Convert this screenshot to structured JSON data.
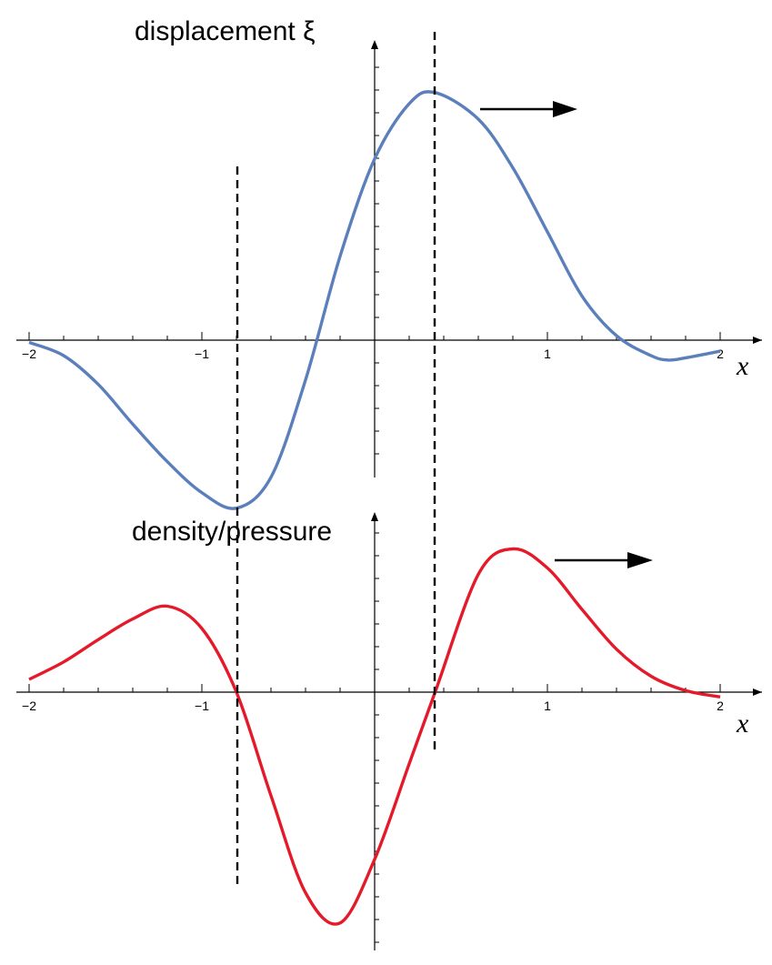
{
  "chart_data": [
    {
      "type": "line",
      "ylabel": "displacement  ξ",
      "xlabel": "x",
      "xlim": [
        -2,
        2
      ],
      "xticks": [
        -2,
        -1,
        1,
        2
      ],
      "series_color": "#5b7fbb",
      "x": [
        -2.0,
        -1.8,
        -1.6,
        -1.4,
        -1.2,
        -1.0,
        -0.8,
        -0.6,
        -0.4,
        -0.2,
        0.0,
        0.2,
        0.35,
        0.6,
        0.8,
        1.0,
        1.2,
        1.4,
        1.6,
        1.7,
        1.8,
        2.0
      ],
      "values": [
        -0.01,
        -0.07,
        -0.2,
        -0.38,
        -0.55,
        -0.69,
        -0.76,
        -0.62,
        -0.18,
        0.38,
        0.82,
        1.07,
        1.12,
        1.0,
        0.78,
        0.49,
        0.2,
        0.02,
        -0.07,
        -0.09,
        -0.08,
        -0.05
      ],
      "annotations": [
        "arrow pointing right",
        "dashed line at peak x≈0.35",
        "dashed line at trough x≈-0.8"
      ]
    },
    {
      "type": "line",
      "ylabel": "density/pressure",
      "xlabel": "x",
      "xlim": [
        -2,
        2
      ],
      "xticks": [
        -2,
        -1,
        1,
        2
      ],
      "series_color": "#e41a2a",
      "x": [
        -2.0,
        -1.8,
        -1.6,
        -1.4,
        -1.2,
        -1.0,
        -0.8,
        -0.6,
        -0.4,
        -0.2,
        0.0,
        0.2,
        0.35,
        0.6,
        0.8,
        1.0,
        1.2,
        1.4,
        1.6,
        1.8,
        2.0
      ],
      "values": [
        0.08,
        0.19,
        0.33,
        0.46,
        0.54,
        0.4,
        0.0,
        -0.65,
        -1.26,
        -1.45,
        -1.05,
        -0.45,
        0.0,
        0.74,
        0.9,
        0.78,
        0.52,
        0.27,
        0.1,
        0.01,
        -0.03
      ],
      "annotations": [
        "arrow pointing right"
      ]
    }
  ]
}
